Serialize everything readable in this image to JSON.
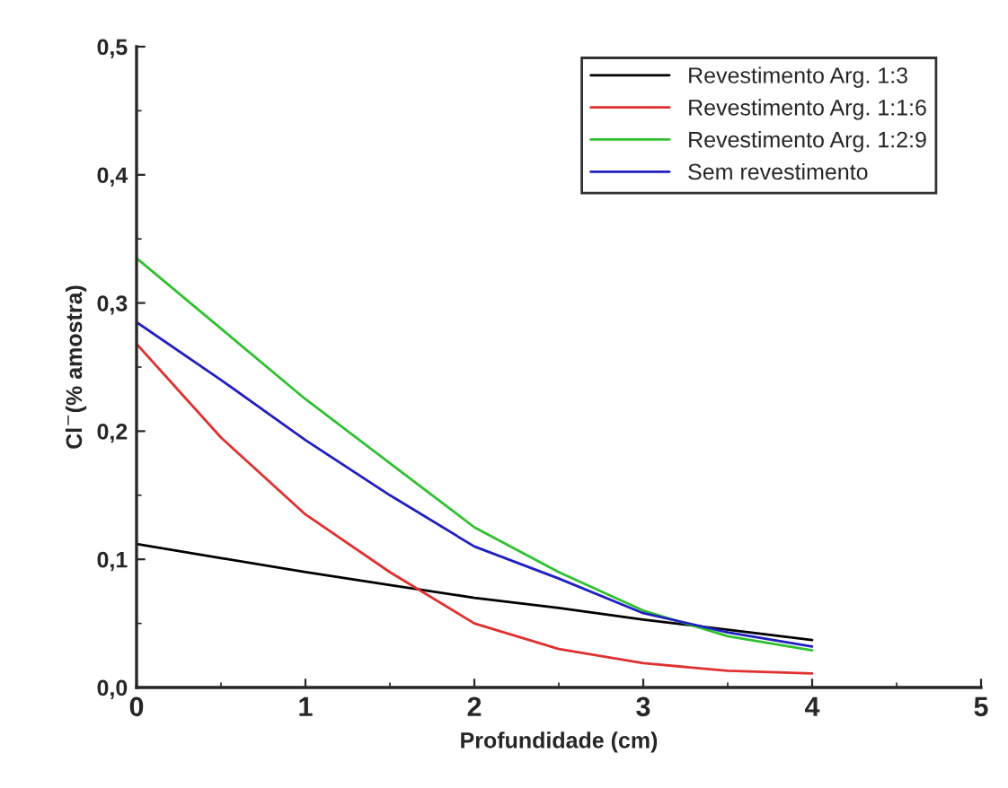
{
  "chart_data": {
    "type": "line",
    "xlabel": "Profundidade (cm)",
    "ylabel": "Cl$^{−}$(% amostra)",
    "x": [
      0,
      0.5,
      1,
      1.5,
      2,
      2.5,
      3,
      3.5,
      4
    ],
    "series": [
      {
        "name": "Revestimento Arg. 1:3",
        "color": "#000000",
        "values": [
          0.112,
          0.101,
          0.09,
          0.08,
          0.07,
          0.062,
          0.053,
          0.045,
          0.037
        ]
      },
      {
        "name": "Revestimento Arg. 1:1:6",
        "color": "#e03030",
        "values": [
          0.268,
          0.195,
          0.135,
          0.09,
          0.05,
          0.03,
          0.019,
          0.013,
          0.011
        ]
      },
      {
        "name": "Revestimento Arg. 1:2:9",
        "color": "#30c030",
        "values": [
          0.335,
          0.28,
          0.225,
          0.175,
          0.125,
          0.09,
          0.06,
          0.04,
          0.029
        ]
      },
      {
        "name": "Sem revestimento",
        "color": "#2020c0",
        "values": [
          0.285,
          0.24,
          0.193,
          0.15,
          0.11,
          0.085,
          0.058,
          0.043,
          0.032
        ]
      }
    ],
    "xlim": [
      0,
      5
    ],
    "xticks": [
      0,
      1,
      2,
      3,
      4,
      5
    ],
    "ylim": [
      0,
      0.5
    ],
    "yticks": [
      {
        "value": 0,
        "label": "0,0"
      },
      {
        "value": 0.1,
        "label": "0,1"
      },
      {
        "value": 0.2,
        "label": "0,2"
      },
      {
        "value": 0.3,
        "label": "0,3"
      },
      {
        "value": 0.4,
        "label": "0,4"
      },
      {
        "value": 0.5,
        "label": "0,5"
      }
    ],
    "legend": "top right",
    "grid": false,
    "marker": "none",
    "line_style": "solid"
  }
}
